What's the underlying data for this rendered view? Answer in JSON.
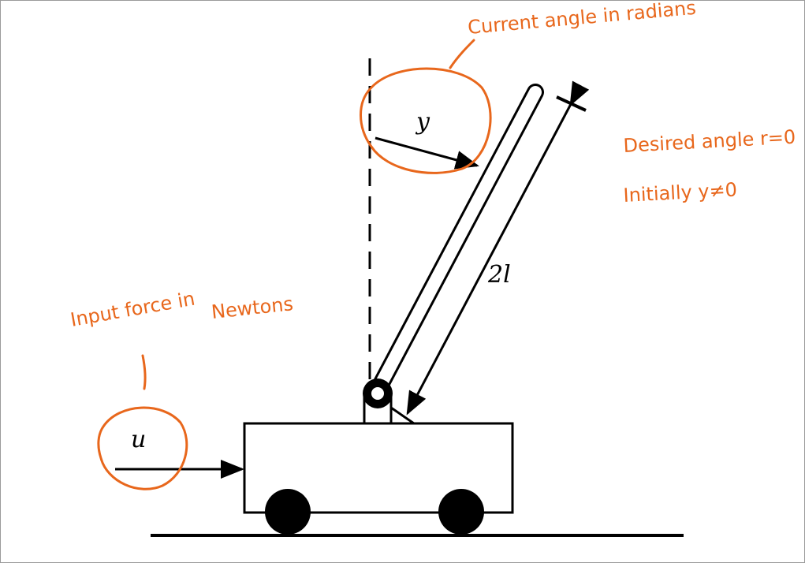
{
  "labels": {
    "angle_symbol": "y",
    "length_label": "2l",
    "force_symbol": "u"
  },
  "annotations": {
    "current_angle": "Current angle in radians",
    "desired_angle": "Desired angle r=0",
    "initially": "Initially y≠0",
    "input_force_line1": "Input force in",
    "input_force_line2": "Newtons"
  },
  "colors": {
    "ink": "#000000",
    "annotation": "#e8671c",
    "background": "#ffffff"
  }
}
